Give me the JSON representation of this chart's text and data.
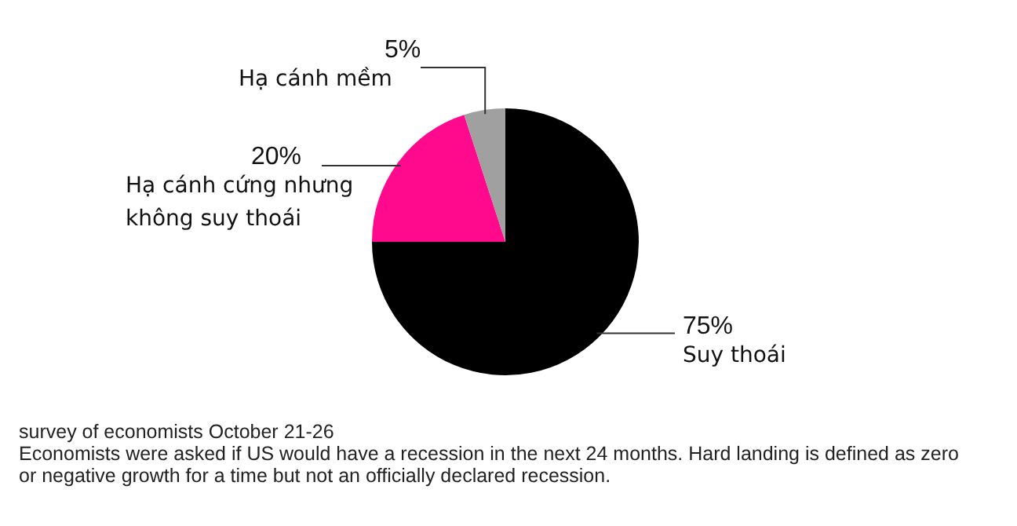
{
  "chart_data": {
    "type": "pie",
    "categories": [
      "Suy thoái",
      "Hạ cánh cứng nhưng không suy thoái",
      "Hạ cánh mềm"
    ],
    "values": [
      75,
      20,
      5
    ],
    "colors": [
      "#000000",
      "#ff0a8c",
      "#a0a0a0"
    ],
    "value_labels": [
      "75%",
      "20%",
      "5%"
    ],
    "legend": false,
    "annotations": [
      "survey of economists October 21-26",
      "Economists were asked if US would have a recession in the next 24 months. Hard landing is defined as zero or negative growth for a time but not an officially declared recession."
    ]
  }
}
